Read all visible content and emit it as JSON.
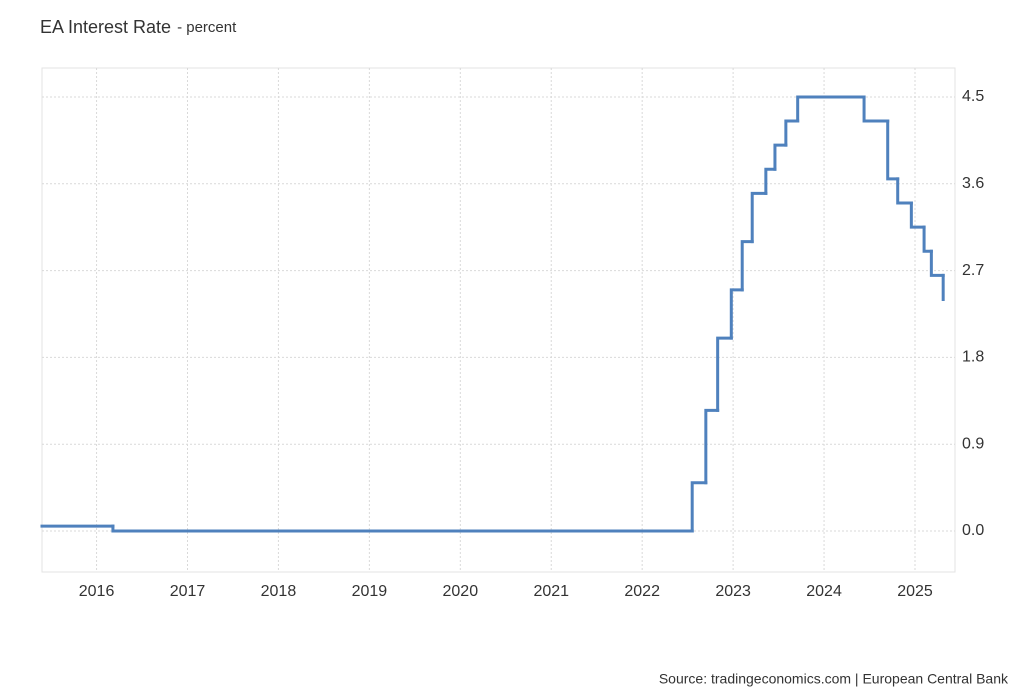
{
  "chart_data": {
    "type": "step",
    "title": "EA Interest Rate",
    "subtitle": "- percent",
    "source": "Source: tradingeconomics.com | European Central Bank",
    "x": [
      2015.4,
      2016.18,
      2022.55,
      2022.7,
      2022.83,
      2022.98,
      2023.1,
      2023.21,
      2023.36,
      2023.46,
      2023.58,
      2023.71,
      2024.44,
      2024.7,
      2024.81,
      2024.96,
      2025.1,
      2025.18,
      2025.31
    ],
    "series": [
      {
        "name": "EA Interest Rate",
        "color": "#4f81bd",
        "values": [
          0.05,
          0,
          0.5,
          1.25,
          2,
          2.5,
          3,
          3.5,
          3.75,
          4,
          4.25,
          4.5,
          4.25,
          3.65,
          3.4,
          3.15,
          2.9,
          2.65,
          2.4
        ]
      }
    ],
    "xlim": [
      2015.4,
      2025.44
    ],
    "xticks": [
      2016,
      2017,
      2018,
      2019,
      2020,
      2021,
      2022,
      2023,
      2024,
      2025
    ],
    "ylim": [
      -0.425,
      4.8
    ],
    "yticks": [
      {
        "value": 0,
        "label": "0.0"
      },
      0.9,
      1.8,
      2.7,
      3.6,
      4.5
    ],
    "grid": true
  }
}
